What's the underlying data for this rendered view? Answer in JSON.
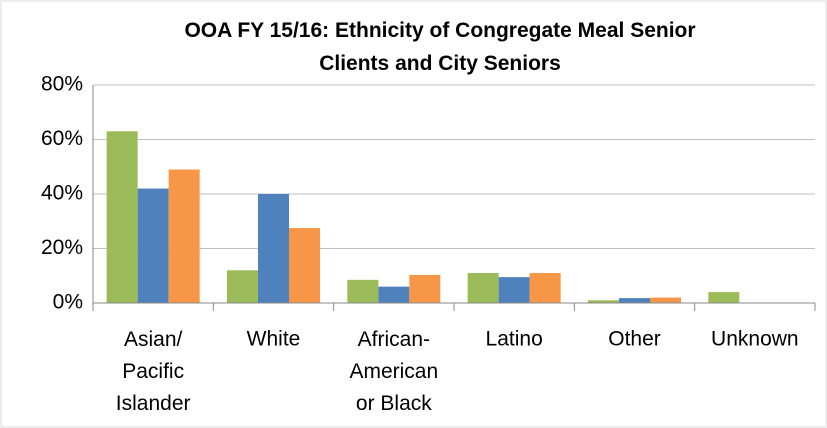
{
  "chart_data": {
    "type": "bar",
    "title": "OOA FY 15/16: Ethnicity of Congregate Meal Senior\nClients and City Seniors",
    "categories": [
      "Asian/\nPacific\nIslander",
      "White",
      "African-\nAmerican\nor Black",
      "Latino",
      "Other",
      "Unknown"
    ],
    "series": [
      {
        "color": "#9bbb59",
        "values": [
          63,
          12,
          8.5,
          11,
          1,
          4
        ]
      },
      {
        "color": "#4f81bd",
        "values": [
          42,
          40,
          6,
          9.5,
          1.8,
          0
        ]
      },
      {
        "color": "#f79646",
        "values": [
          49,
          27.5,
          10.3,
          11,
          2,
          0
        ]
      }
    ],
    "ylim": [
      0,
      80
    ],
    "yticks": [
      {
        "value": 0,
        "label": "0%"
      },
      {
        "value": 20,
        "label": "20%"
      },
      {
        "value": 40,
        "label": "40%"
      },
      {
        "value": 60,
        "label": "60%"
      },
      {
        "value": 80,
        "label": "80%"
      }
    ],
    "grid": true
  }
}
